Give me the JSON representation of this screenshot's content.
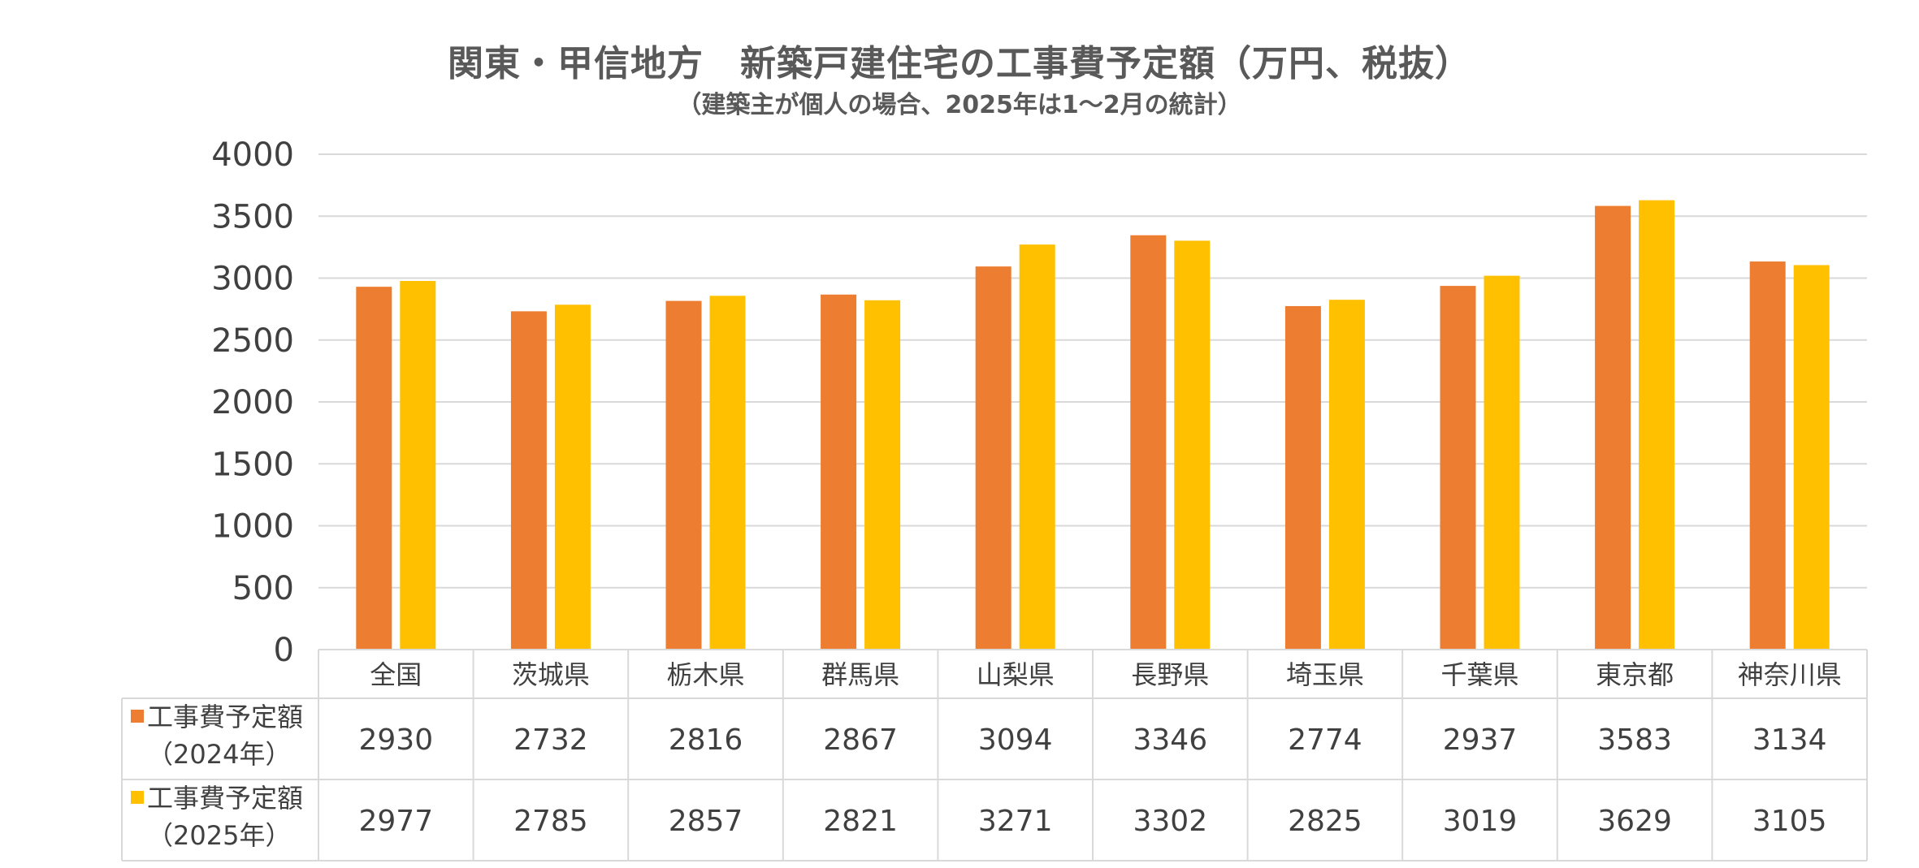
{
  "chart_data": {
    "type": "bar",
    "title": "関東・甲信地方　新築戸建住宅の工事費予定額（万円、税抜）",
    "subtitle": "（建築主が個人の場合、2025年は1～2月の統計）",
    "categories": [
      "全国",
      "茨城県",
      "栃木県",
      "群馬県",
      "山梨県",
      "長野県",
      "埼玉県",
      "千葉県",
      "東京都",
      "神奈川県"
    ],
    "series": [
      {
        "name_line1": "工事費予定額",
        "name_line2": "（2024年）",
        "color": "#ED7D31",
        "values": [
          2930,
          2732,
          2816,
          2867,
          3094,
          3346,
          2774,
          2937,
          3583,
          3134
        ]
      },
      {
        "name_line1": "工事費予定額",
        "name_line2": "（2025年）",
        "color": "#FFC000",
        "values": [
          2977,
          2785,
          2857,
          2821,
          3271,
          3302,
          2825,
          3019,
          3629,
          3105
        ]
      }
    ],
    "yticks": [
      0,
      500,
      1000,
      1500,
      2000,
      2500,
      3000,
      3500,
      4000
    ],
    "ylim": [
      0,
      4000
    ],
    "grid": true,
    "legend": "data-table",
    "gridline_color": "#D9D9D9",
    "text_color": "#404040"
  }
}
